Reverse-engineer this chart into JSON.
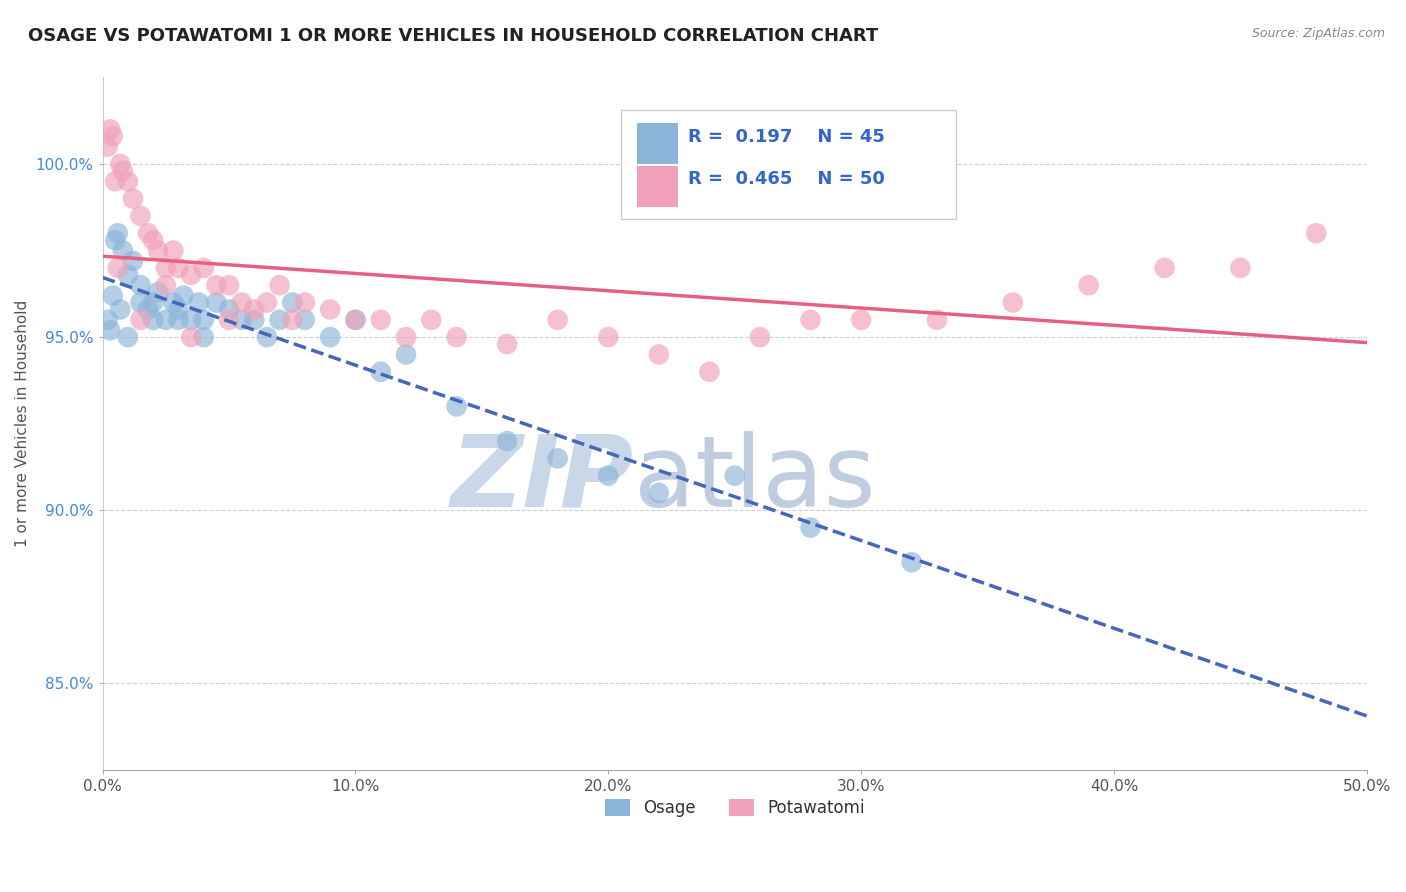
{
  "title": "OSAGE VS POTAWATOMI 1 OR MORE VEHICLES IN HOUSEHOLD CORRELATION CHART",
  "source": "Source: ZipAtlas.com",
  "ylabel": "1 or more Vehicles in Household",
  "xlim": [
    0.0,
    50.0
  ],
  "ylim": [
    82.5,
    102.5
  ],
  "yticks": [
    85.0,
    90.0,
    95.0,
    100.0
  ],
  "ytick_labels": [
    "85.0%",
    "90.0%",
    "95.0%",
    "100.0%"
  ],
  "xticks": [
    0.0,
    10.0,
    20.0,
    30.0,
    40.0,
    50.0
  ],
  "xtick_labels": [
    "0.0%",
    "10.0%",
    "20.0%",
    "30.0%",
    "40.0%",
    "50.0%"
  ],
  "legend_r_osage": "0.197",
  "legend_n_osage": "45",
  "legend_r_potawatomi": "0.465",
  "legend_n_potawatomi": "50",
  "osage_color": "#8ab4d8",
  "potawatomi_color": "#f0a0b8",
  "osage_line_color": "#4466bb",
  "potawatomi_line_color": "#e86080",
  "watermark_zip": "ZIP",
  "watermark_atlas": "atlas",
  "watermark_color_zip": "#c8d8e8",
  "watermark_color_atlas": "#c0cce0",
  "osage_x": [
    0.2,
    0.4,
    0.5,
    0.6,
    0.8,
    1.0,
    1.2,
    1.5,
    1.8,
    2.0,
    2.2,
    2.5,
    2.8,
    3.0,
    3.2,
    3.5,
    3.8,
    4.0,
    4.5,
    5.0,
    5.5,
    6.0,
    6.5,
    7.0,
    7.5,
    8.0,
    9.0,
    10.0,
    11.0,
    12.0,
    14.0,
    16.0,
    18.0,
    20.0,
    22.0,
    25.0,
    28.0,
    32.0,
    1.0,
    1.5,
    2.0,
    3.0,
    4.0,
    0.3,
    0.7
  ],
  "osage_y": [
    95.5,
    96.2,
    97.8,
    98.0,
    97.5,
    96.8,
    97.2,
    96.5,
    95.8,
    96.0,
    96.3,
    95.5,
    96.0,
    95.8,
    96.2,
    95.5,
    96.0,
    95.5,
    96.0,
    95.8,
    95.5,
    95.5,
    95.0,
    95.5,
    96.0,
    95.5,
    95.0,
    95.5,
    94.0,
    94.5,
    93.0,
    92.0,
    91.5,
    91.0,
    90.5,
    91.0,
    89.5,
    88.5,
    95.0,
    96.0,
    95.5,
    95.5,
    95.0,
    95.2,
    95.8
  ],
  "potawatomi_x": [
    0.2,
    0.3,
    0.4,
    0.5,
    0.7,
    0.8,
    1.0,
    1.2,
    1.5,
    1.8,
    2.0,
    2.2,
    2.5,
    2.8,
    3.0,
    3.5,
    4.0,
    4.5,
    5.0,
    5.5,
    6.0,
    6.5,
    7.0,
    7.5,
    8.0,
    9.0,
    10.0,
    11.0,
    12.0,
    13.0,
    14.0,
    16.0,
    18.0,
    20.0,
    22.0,
    24.0,
    26.0,
    28.0,
    30.0,
    33.0,
    36.0,
    39.0,
    42.0,
    45.0,
    48.0,
    1.5,
    2.5,
    0.6,
    3.5,
    5.0
  ],
  "potawatomi_y": [
    100.5,
    101.0,
    100.8,
    99.5,
    100.0,
    99.8,
    99.5,
    99.0,
    98.5,
    98.0,
    97.8,
    97.5,
    97.0,
    97.5,
    97.0,
    96.8,
    97.0,
    96.5,
    96.5,
    96.0,
    95.8,
    96.0,
    96.5,
    95.5,
    96.0,
    95.8,
    95.5,
    95.5,
    95.0,
    95.5,
    95.0,
    94.8,
    95.5,
    95.0,
    94.5,
    94.0,
    95.0,
    95.5,
    95.5,
    95.5,
    96.0,
    96.5,
    97.0,
    97.0,
    98.0,
    95.5,
    96.5,
    97.0,
    95.0,
    95.5
  ]
}
